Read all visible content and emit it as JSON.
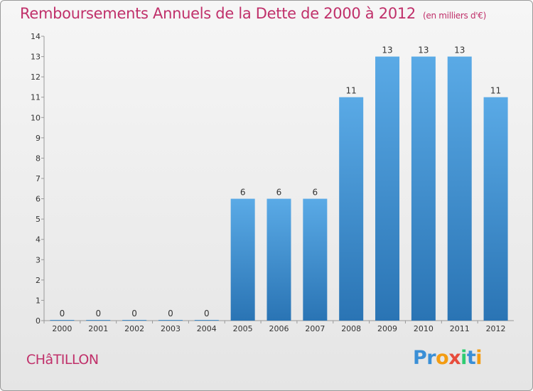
{
  "header": {
    "title": "Remboursements Annuels de la Dette de 2000 à 2012",
    "unit": "(en milliers d'€)"
  },
  "footer": {
    "city": "CHâTILLON",
    "logo_letters": [
      "P",
      "r",
      "o",
      "x",
      "i",
      "t",
      "i"
    ]
  },
  "colors": {
    "title": "#c0306a",
    "bar_top": "#5aaae6",
    "bar_bottom": "#2a74b4",
    "logo": [
      "#3a8fd6",
      "#3a8fd6",
      "#f39c12",
      "#e74c3c",
      "#2ecc71",
      "#3a8fd6",
      "#f39c12"
    ]
  },
  "chart_data": {
    "type": "bar",
    "title": "Remboursements Annuels de la Dette de 2000 à 2012",
    "categories": [
      "2000",
      "2001",
      "2002",
      "2003",
      "2004",
      "2005",
      "2006",
      "2007",
      "2008",
      "2009",
      "2010",
      "2011",
      "2012"
    ],
    "values": [
      0,
      0,
      0,
      0,
      0,
      6,
      6,
      6,
      11,
      13,
      13,
      13,
      11
    ],
    "ylim": [
      0,
      14
    ],
    "yticks": [
      0,
      1,
      2,
      3,
      4,
      5,
      6,
      7,
      8,
      9,
      10,
      11,
      12,
      13,
      14
    ],
    "grid": false,
    "legend": "none",
    "data_labels": true
  }
}
